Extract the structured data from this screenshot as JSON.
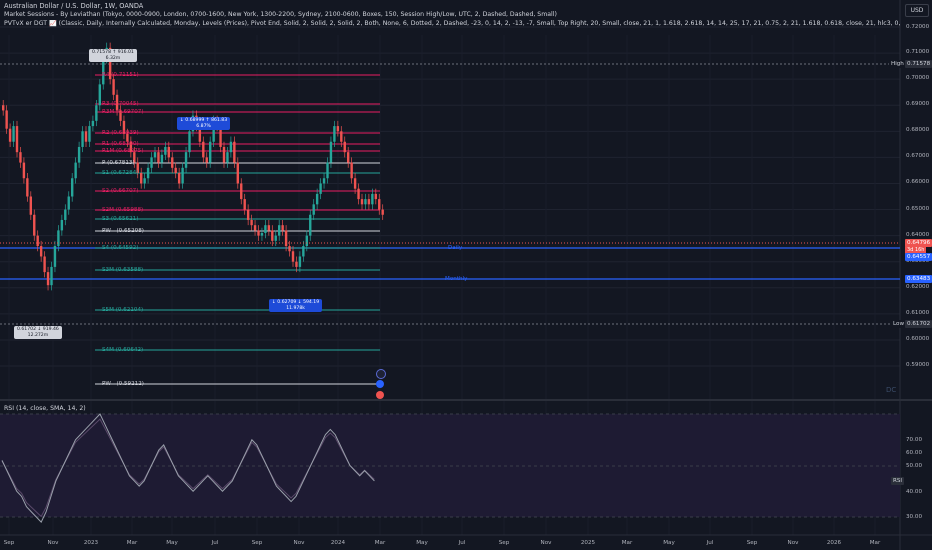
{
  "header": {
    "title": "Australian Dollar / U.S. Dollar, 1W, OANDA",
    "indicator1": "Market Sessions - By Leviathan (Tokyo, 0000-0900, London, 0700-1600, New York, 1300-2200, Sydney, 2100-0600, Boxes, 150, Session High/Low, UTC, 2, Dashed, Dashed, Small)",
    "indicator2": "PVTvX er DGT 📈 (Classic, Daily, Internally Calculated, Monday, Levels (Prices), Pivot End, Solid, 2, Solid, 2, Solid, 2, Both, None, 6, Dotted, 2, Dashed, -23, 0, 14, 2, -13, -7, Small, Top Right, 20, Small, close, 21, 1, 1.618, 2.618, 14, 14, 25, 17, 21, 0.75, 2, 21, 1.618, 0.618, close, 21, hlc3, 0, 1, 9, 26, 52, 26, 2, Solid, -2, Solid, 0.68, 100, close, close, 14, 30, 7"
  },
  "currency_button": "USD",
  "price_scale": [
    "0.72000",
    "0.71000",
    "0.70000",
    "0.69000",
    "0.68000",
    "0.67000",
    "0.66000",
    "0.65000",
    "0.64000",
    "0.63000",
    "0.62000",
    "0.61000",
    "0.60000",
    "0.59000"
  ],
  "price_tags": {
    "high_label": "High",
    "high_value": "0.71578",
    "current_value": "0.64796",
    "countdown": "3d 16h",
    "blue_value": "0.64557",
    "monthly_value": "0.63483",
    "low_label": "Low",
    "low_value": "0.61702"
  },
  "pivot_labels": {
    "r4": "R4 (0.71151)",
    "r3": "R3 (0.70045)",
    "r3b": "R3M (0.69707)",
    "r2": "R2 (0.68939)",
    "r1": "R1 (0.68390)",
    "r1b": "R1M (0.68275)",
    "p": "P (0.67813)",
    "s1": "S1 (0.67284)",
    "s2": "S2 (0.66707)",
    "s2m": "S2M (0.65988)",
    "s3": "S3 (0.65621)",
    "pw1": "PW - (0.65208)",
    "s4": "S4 (0.64592)",
    "s3m": "S3M (0.63588)",
    "s5m": "S5M (0.62104)",
    "s4m": "S4M (0.60642)",
    "pw2": "PW - (0.59212)"
  },
  "line_labels": {
    "daily": "Daily",
    "monthly": "Monthly"
  },
  "callouts": {
    "top": {
      "l1": "0.71578 ↑ 916.01",
      "l2": "6.32m"
    },
    "mid": {
      "l1": "↓ 0.68999 ↑ 861.83",
      "l2": "6.87%"
    },
    "low": {
      "l1": "↓ 0.62709 ↓ 594.19",
      "l2": "11.978k"
    },
    "bottom": {
      "l1": "0.61702 ↓ 919.46",
      "l2": "12.272m"
    }
  },
  "rsi": {
    "title": "RSI (14, close, SMA, 14, 2)",
    "scale": [
      "70.00",
      "60.00",
      "50.00",
      "40.00",
      "30.00"
    ],
    "badge": "RSI"
  },
  "time_axis": [
    "Sep",
    "Nov",
    "2023",
    "Mar",
    "May",
    "Jul",
    "Sep",
    "Nov",
    "2024",
    "Mar",
    "May",
    "Jul",
    "Sep",
    "Nov",
    "2025",
    "Mar",
    "May",
    "Jul",
    "Sep",
    "Nov",
    "2026",
    "Mar"
  ],
  "watermark": "DC",
  "colors": {
    "bg": "#131722",
    "up": "#26a69a",
    "down": "#ef5350",
    "pivot_r": "#e91e63",
    "pivot_s": "#26a69a",
    "blue": "#2962ff",
    "rsi_bg": "#1e1b33"
  }
}
